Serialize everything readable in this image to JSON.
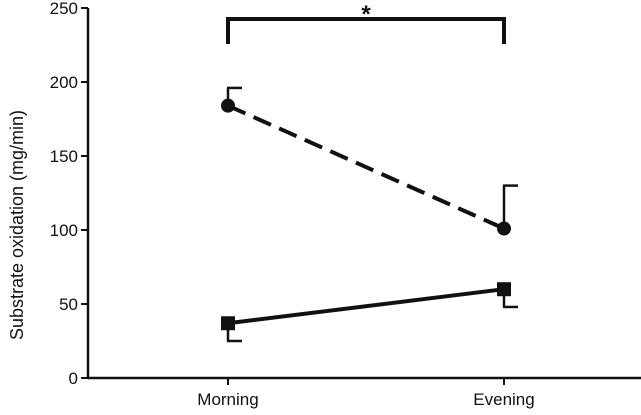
{
  "chart_data": {
    "type": "line",
    "ylabel": "Substrate oxidation (mg/min)",
    "xlabel": "",
    "categories": [
      "Morning",
      "Evening"
    ],
    "ylim": [
      0,
      250
    ],
    "yticks": [
      0,
      50,
      100,
      150,
      200,
      250
    ],
    "grid": false,
    "series": [
      {
        "values": [
          184,
          101
        ],
        "error_upper": [
          12,
          29
        ],
        "error_lower": [
          0,
          0
        ],
        "marker": "circle",
        "line_style": "dashed",
        "color": "#111111"
      },
      {
        "values": [
          37,
          60
        ],
        "error_upper": [
          0,
          0
        ],
        "error_lower": [
          12,
          12
        ],
        "marker": "square",
        "line_style": "solid",
        "color": "#111111"
      }
    ],
    "annotation": {
      "text": "*",
      "from_category": "Morning",
      "to_category": "Evening"
    }
  }
}
